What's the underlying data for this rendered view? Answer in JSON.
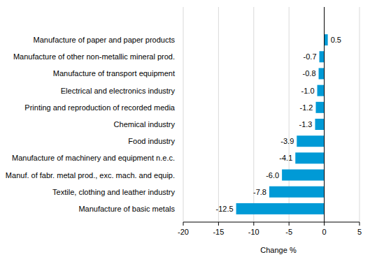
{
  "chart_data": {
    "type": "bar",
    "orientation": "horizontal",
    "categories": [
      "Manufacture of paper and paper products",
      "Manufacture of other non-metallic mineral prod.",
      "Manufacture of transport equipment",
      "Electrical and electronics industry",
      "Printing and reproduction of recorded media",
      "Chemical industry",
      "Food industry",
      "Manufacture of machinery and equipment n.e.c.",
      "Manuf. of fabr. metal prod., exc. mach. and equip.",
      "Textile, clothing and leather industry",
      "Manufacture of basic metals"
    ],
    "values": [
      0.5,
      -0.7,
      -0.8,
      -1.0,
      -1.2,
      -1.3,
      -3.9,
      -4.1,
      -6.0,
      -7.8,
      -12.5
    ],
    "value_labels": [
      "0.5",
      "-0.7",
      "-0.8",
      "-1.0",
      "-1.2",
      "-1.3",
      "-3.9",
      "-4.1",
      "-6.0",
      "-7.8",
      "-12.5"
    ],
    "color": "#009ad6",
    "x_label": "Change %",
    "xlim": [
      -20,
      5
    ],
    "xticks": [
      -20,
      -15,
      -10,
      -5,
      0,
      5
    ],
    "grid": true,
    "data_labels": true
  }
}
